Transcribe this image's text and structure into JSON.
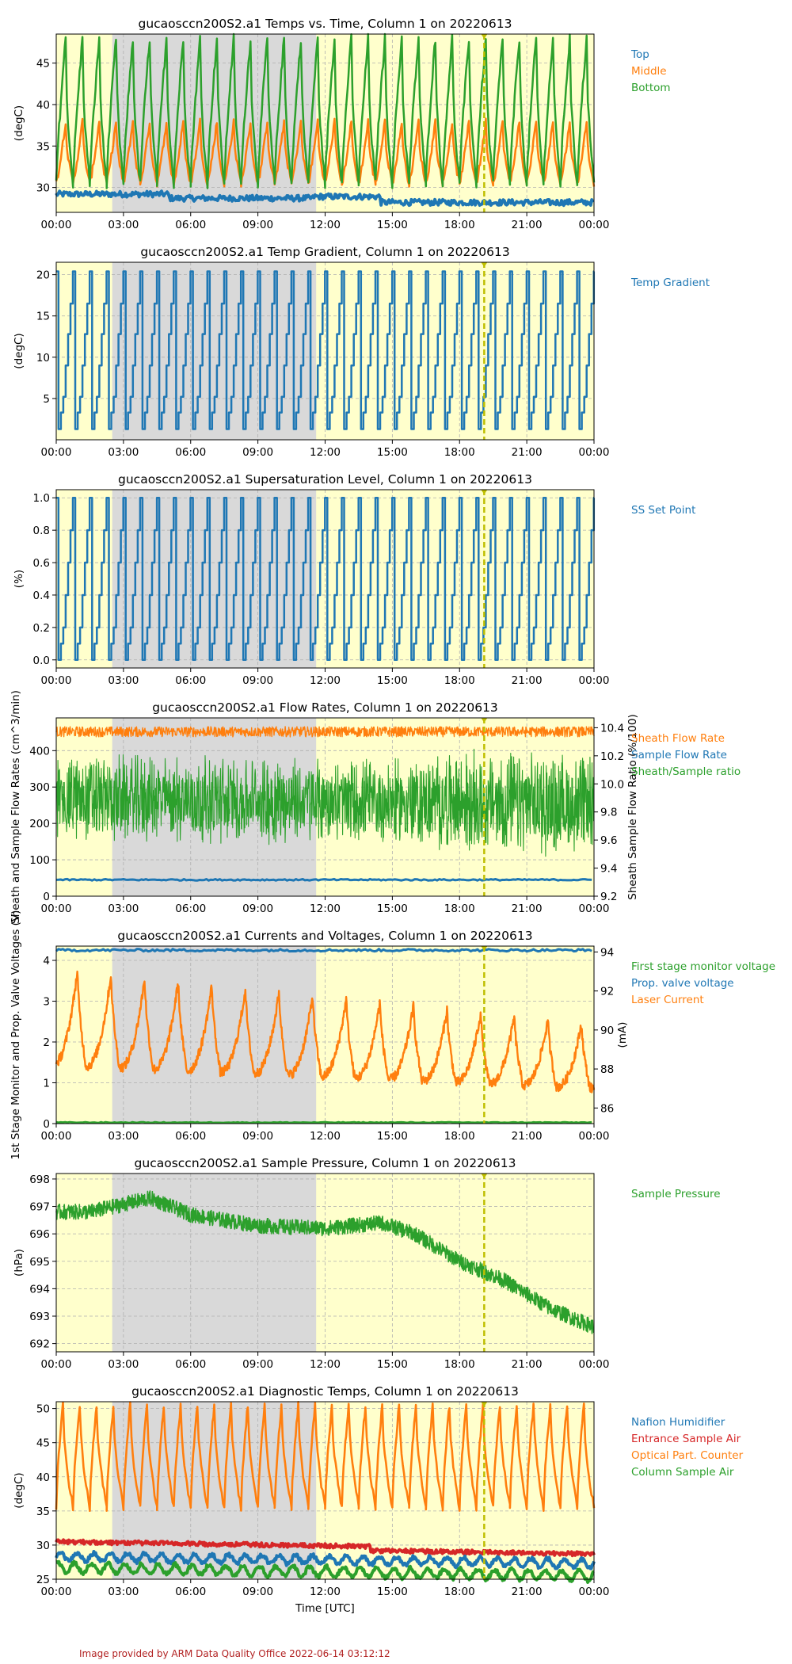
{
  "colors": {
    "blue": "#1f77b4",
    "orange": "#ff7f0e",
    "green": "#2ca02c",
    "red": "#d62728",
    "night": "#d9d9d9",
    "day": "#ffffcc",
    "marker": "#bfbf00",
    "footer": "#b22222"
  },
  "chart_data": [
    {
      "type": "line",
      "title": "gucaosccn200S2.a1 Temps vs. Time, Column 1 on 20220613",
      "xlabel": "",
      "ylabel": "(degC)",
      "ylim": [
        27,
        48.5
      ],
      "yticks": [
        "30",
        "35",
        "40",
        "45"
      ],
      "xticks": [
        "00:00",
        "03:00",
        "06:00",
        "09:00",
        "12:00",
        "15:00",
        "18:00",
        "21:00",
        "00:00"
      ],
      "series": [
        {
          "name": "Top",
          "color": "blue",
          "description": "flat ~29 degC with small steps"
        },
        {
          "name": "Middle",
          "color": "orange",
          "description": "sawtooth ~30 to 38 degC, 45 min period"
        },
        {
          "name": "Bottom",
          "color": "green",
          "description": "sawtooth ~30 to 48 degC, 45 min period"
        }
      ]
    },
    {
      "type": "line",
      "title": "gucaosccn200S2.a1 Temp Gradient, Column 1 on 20220613",
      "xlabel": "",
      "ylabel": "(degC)",
      "ylim": [
        0,
        21.5
      ],
      "yticks": [
        "5",
        "10",
        "15",
        "20"
      ],
      "xticks": [
        "00:00",
        "03:00",
        "06:00",
        "09:00",
        "12:00",
        "15:00",
        "18:00",
        "21:00",
        "00:00"
      ],
      "step_levels": [
        1.3,
        3.3,
        5.2,
        9.0,
        12.8,
        16.5,
        20.4
      ],
      "series": [
        {
          "name": "Temp Gradient",
          "color": "blue",
          "description": "staircase 1.3 to 20.4 degC repeating every 45 min"
        }
      ]
    },
    {
      "type": "line",
      "title": "gucaosccn200S2.a1 Supersaturation Level, Column 1 on 20220613",
      "xlabel": "",
      "ylabel": "(%)",
      "ylim": [
        -0.05,
        1.05
      ],
      "yticks": [
        "0.0",
        "0.2",
        "0.4",
        "0.6",
        "0.8",
        "1.0"
      ],
      "xticks": [
        "00:00",
        "03:00",
        "06:00",
        "09:00",
        "12:00",
        "15:00",
        "18:00",
        "21:00",
        "00:00"
      ],
      "step_levels": [
        0.0,
        0.1,
        0.2,
        0.4,
        0.6,
        0.8,
        1.0
      ],
      "series": [
        {
          "name": "SS Set Point",
          "color": "blue",
          "description": "staircase 0.0 to 1.0 % repeating every 45 min"
        }
      ]
    },
    {
      "type": "line",
      "title": "gucaosccn200S2.a1 Flow Rates, Column 1 on 20220613",
      "xlabel": "",
      "ylabel": "Sheath and Sample Flow Rates (cm^3/min)",
      "ylabel_right": "Sheath Sample Flow Ratio (%/100)",
      "ylim": [
        0,
        490
      ],
      "ylim_right": [
        9.2,
        10.47
      ],
      "yticks": [
        "0",
        "100",
        "200",
        "300",
        "400"
      ],
      "yticks_right": [
        "9.2",
        "9.4",
        "9.6",
        "9.8",
        "10.0",
        "10.2",
        "10.4"
      ],
      "xticks": [
        "00:00",
        "03:00",
        "06:00",
        "09:00",
        "12:00",
        "15:00",
        "18:00",
        "21:00",
        "00:00"
      ],
      "series": [
        {
          "name": "Sheath Flow Rate",
          "color": "orange",
          "description": "~450 cm^3/min, noisy band"
        },
        {
          "name": "Sample Flow Rate",
          "color": "blue",
          "description": "~45 cm^3/min, flat"
        },
        {
          "name": "Sheath/Sample ratio",
          "color": "green",
          "description": "~9.8-10.0 with noise band 9.5 to 10.2 (right axis)"
        }
      ]
    },
    {
      "type": "line",
      "title": "gucaosccn200S2.a1 Currents and Voltages, Column 1 on 20220613",
      "xlabel": "",
      "ylabel": "1st Stage Monitor and Prop. Valve Voltages (V)",
      "ylabel_right": "(mA)",
      "ylim": [
        0,
        4.35
      ],
      "ylim_right": [
        85.2,
        94.3
      ],
      "yticks": [
        "0",
        "1",
        "2",
        "3",
        "4"
      ],
      "yticks_right": [
        "86",
        "88",
        "90",
        "92",
        "94"
      ],
      "xticks": [
        "00:00",
        "03:00",
        "06:00",
        "09:00",
        "12:00",
        "15:00",
        "18:00",
        "21:00",
        "00:00"
      ],
      "series": [
        {
          "name": "First stage monitor voltage",
          "color": "green",
          "description": "~0.02 V flat"
        },
        {
          "name": "Prop. valve voltage",
          "color": "blue",
          "description": "~4.25 V flat"
        },
        {
          "name": "Laser Current",
          "color": "orange",
          "description": "oscillates ~87 to 93 mA, ~1.5 h period (right axis)"
        }
      ]
    },
    {
      "type": "line",
      "title": "gucaosccn200S2.a1 Sample Pressure, Column 1 on 20220613",
      "xlabel": "",
      "ylabel": "(hPa)",
      "ylim": [
        691.7,
        698.2
      ],
      "yticks": [
        "692",
        "693",
        "694",
        "695",
        "696",
        "697",
        "698"
      ],
      "xticks": [
        "00:00",
        "03:00",
        "06:00",
        "09:00",
        "12:00",
        "15:00",
        "18:00",
        "21:00",
        "00:00"
      ],
      "trend": [
        {
          "hour": 0,
          "hPa": 696.8
        },
        {
          "hour": 1.5,
          "hPa": 696.8
        },
        {
          "hour": 4.2,
          "hPa": 697.3
        },
        {
          "hour": 6,
          "hPa": 696.7
        },
        {
          "hour": 9,
          "hPa": 696.3
        },
        {
          "hour": 12,
          "hPa": 696.2
        },
        {
          "hour": 14.5,
          "hPa": 696.4
        },
        {
          "hour": 16,
          "hPa": 696.0
        },
        {
          "hour": 18,
          "hPa": 695.0
        },
        {
          "hour": 20,
          "hPa": 694.3
        },
        {
          "hour": 22,
          "hPa": 693.3
        },
        {
          "hour": 24,
          "hPa": 692.6
        }
      ],
      "series": [
        {
          "name": "Sample Pressure",
          "color": "green",
          "description": "declines from ~697 hPa to ~692.5 hPa"
        }
      ]
    },
    {
      "type": "line",
      "title": "gucaosccn200S2.a1 Diagnostic Temps, Column 1 on 20220613",
      "xlabel": "Time [UTC]",
      "ylabel": "(degC)",
      "ylim": [
        25,
        51
      ],
      "yticks": [
        "25",
        "30",
        "35",
        "40",
        "45",
        "50"
      ],
      "xticks": [
        "00:00",
        "03:00",
        "06:00",
        "09:00",
        "12:00",
        "15:00",
        "18:00",
        "21:00",
        "00:00"
      ],
      "series": [
        {
          "name": "Nafion Humidifier",
          "color": "blue",
          "description": "~28 degC with small oscillations"
        },
        {
          "name": "Entrance Sample Air",
          "color": "red",
          "description": "~30 degC slowly decreasing"
        },
        {
          "name": "Optical Part. Counter",
          "color": "orange",
          "description": "sawtooth ~35 to 50 degC"
        },
        {
          "name": "Column Sample Air",
          "color": "green",
          "description": "~26.5 degC with oscillations"
        }
      ]
    }
  ],
  "shading": {
    "night_start_hour": 2.5,
    "night_end_hour": 11.6,
    "marker_hour": 19.1
  },
  "footer": "Image provided by ARM Data Quality Office 2022-06-14 03:12:12"
}
